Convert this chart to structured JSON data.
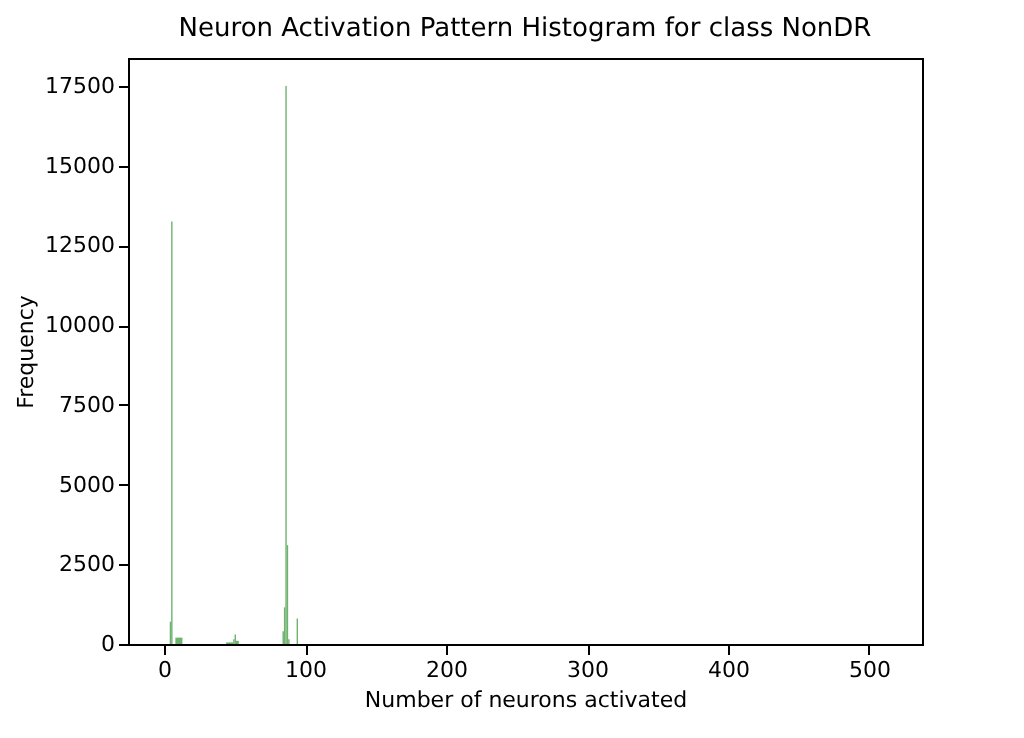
{
  "chart_data": {
    "type": "histogram",
    "title": "Neuron Activation Pattern Histogram for class NonDR",
    "xlabel": "Number of neurons activated",
    "ylabel": "Frequency",
    "bins": [
      4,
      5,
      6,
      8,
      13,
      44,
      49,
      50,
      51,
      53,
      84,
      85,
      86,
      87,
      88,
      89,
      94,
      95
    ],
    "values": [
      700,
      13250,
      0,
      200,
      0,
      50,
      150,
      300,
      100,
      0,
      400,
      1150,
      17500,
      3100,
      150,
      0,
      800
    ],
    "color": "#6fb26f",
    "xlim": [
      -25.6,
      537.6
    ],
    "xticks": [
      0,
      100,
      200,
      300,
      400,
      500
    ],
    "ylim": [
      0,
      18375
    ],
    "yticks": [
      0,
      2500,
      5000,
      7500,
      10000,
      12500,
      15000,
      17500
    ],
    "grid": false
  }
}
